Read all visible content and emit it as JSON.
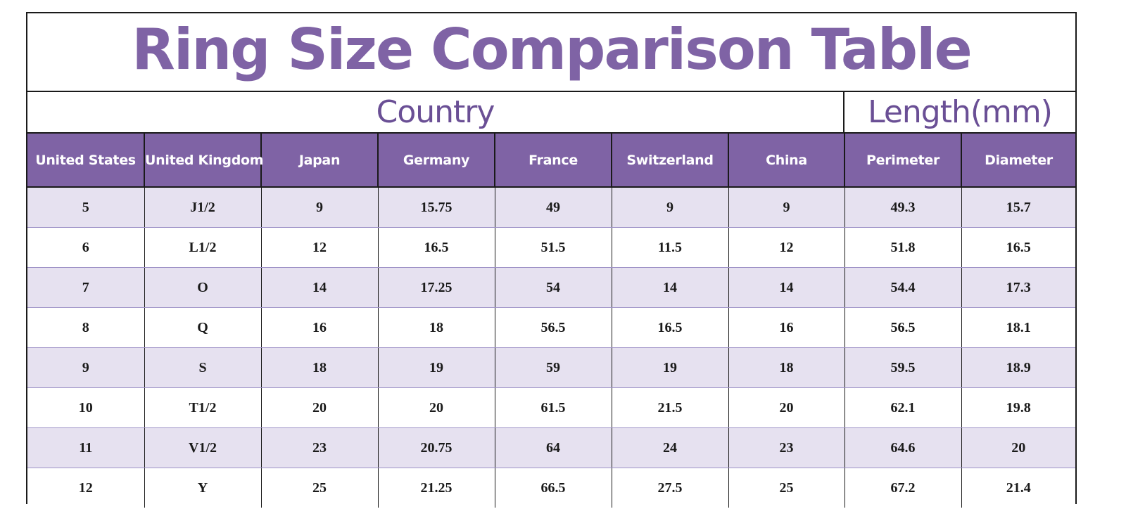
{
  "title": "Ring Size Comparison Table",
  "groups": {
    "country": "Country",
    "length": "Length(mm)"
  },
  "columns": [
    "United States",
    "United Kingdom",
    "Japan",
    "Germany",
    "France",
    "Switzerland",
    "China",
    "Perimeter",
    "Diameter"
  ],
  "rows": [
    [
      "5",
      "J1/2",
      "9",
      "15.75",
      "49",
      "9",
      "9",
      "49.3",
      "15.7"
    ],
    [
      "6",
      "L1/2",
      "12",
      "16.5",
      "51.5",
      "11.5",
      "12",
      "51.8",
      "16.5"
    ],
    [
      "7",
      "O",
      "14",
      "17.25",
      "54",
      "14",
      "14",
      "54.4",
      "17.3"
    ],
    [
      "8",
      "Q",
      "16",
      "18",
      "56.5",
      "16.5",
      "16",
      "56.5",
      "18.1"
    ],
    [
      "9",
      "S",
      "18",
      "19",
      "59",
      "19",
      "18",
      "59.5",
      "18.9"
    ],
    [
      "10",
      "T1/2",
      "20",
      "20",
      "61.5",
      "21.5",
      "20",
      "62.1",
      "19.8"
    ],
    [
      "11",
      "V1/2",
      "23",
      "20.75",
      "64",
      "24",
      "23",
      "64.6",
      "20"
    ],
    [
      "12",
      "Y",
      "25",
      "21.25",
      "66.5",
      "27.5",
      "25",
      "67.2",
      "21.4"
    ]
  ],
  "colors": {
    "header_purple": "#7f63a5",
    "title_purple": "#7f63a5",
    "stripe": "#e6e1f0"
  }
}
